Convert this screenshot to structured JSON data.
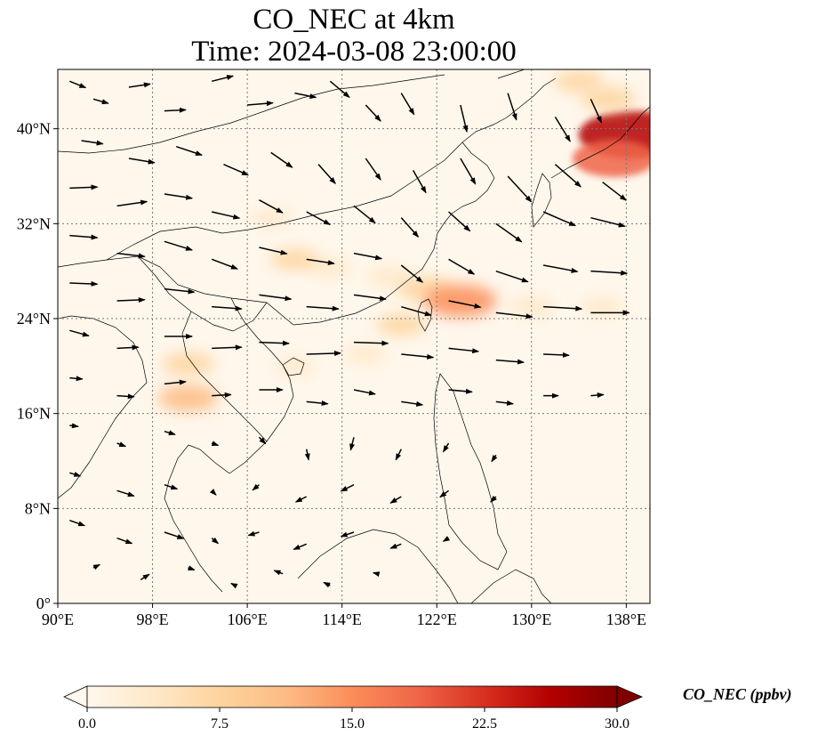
{
  "title_line1": "CO_NEC at 4km",
  "title_line2": "Time: 2024-03-08 23:00:00",
  "map": {
    "lon_range": [
      90,
      140
    ],
    "lat_range": [
      0,
      45
    ],
    "lon_ticks": [
      "90°E",
      "98°E",
      "106°E",
      "114°E",
      "122°E",
      "130°E",
      "138°E"
    ],
    "lon_tick_values": [
      90,
      98,
      106,
      114,
      122,
      130,
      138
    ],
    "lat_ticks": [
      "0°",
      "8°N",
      "16°N",
      "24°N",
      "32°N",
      "40°N"
    ],
    "lat_tick_values": [
      0,
      8,
      16,
      24,
      32,
      40
    ],
    "gridlines": true,
    "overlay": "wind vectors"
  },
  "colorbar": {
    "label": "CO_NEC (ppbv)",
    "ticks": [
      "0.0",
      "7.5",
      "15.0",
      "22.5",
      "30.0"
    ],
    "tick_values": [
      0,
      7.5,
      15,
      22.5,
      30
    ],
    "range": [
      0,
      30
    ],
    "colormap": "OrRd",
    "colors": [
      "#fff7ec",
      "#fee8c8",
      "#fdd49e",
      "#fdbb84",
      "#fc8d59",
      "#ef6548",
      "#d7301f",
      "#b30000",
      "#7f0000"
    ],
    "extend": "both"
  },
  "plumes": [
    {
      "lon": 113,
      "lat": 28.3,
      "value": 4
    },
    {
      "lon": 110,
      "lat": 29,
      "value": 6
    },
    {
      "lon": 118,
      "lat": 27.5,
      "value": 5
    },
    {
      "lon": 121,
      "lat": 26.5,
      "value": 8
    },
    {
      "lon": 124,
      "lat": 25.5,
      "value": 14
    },
    {
      "lon": 130,
      "lat": 25,
      "value": 5
    },
    {
      "lon": 136,
      "lat": 25,
      "value": 4
    },
    {
      "lon": 108,
      "lat": 32.5,
      "value": 3
    },
    {
      "lon": 119,
      "lat": 23.5,
      "value": 6
    },
    {
      "lon": 116,
      "lat": 21,
      "value": 4
    },
    {
      "lon": 110,
      "lat": 20,
      "value": 3
    },
    {
      "lon": 101,
      "lat": 17.3,
      "value": 10
    },
    {
      "lon": 101,
      "lat": 20.2,
      "value": 7
    },
    {
      "lon": 138.5,
      "lat": 39.5,
      "value": 26
    },
    {
      "lon": 137,
      "lat": 37.5,
      "value": 18
    },
    {
      "lon": 136.5,
      "lat": 42.5,
      "value": 8
    },
    {
      "lon": 134,
      "lat": 44,
      "value": 6
    }
  ],
  "wind_vectors": [
    {
      "lon": 91,
      "lat": 44,
      "u": 1.5,
      "v": -0.6
    },
    {
      "lon": 93,
      "lat": 42.5,
      "u": 1.4,
      "v": -0.4
    },
    {
      "lon": 96,
      "lat": 43.5,
      "u": 2.0,
      "v": 0.3
    },
    {
      "lon": 99,
      "lat": 41.5,
      "u": 2.0,
      "v": 0.1
    },
    {
      "lon": 103,
      "lat": 44,
      "u": 2.0,
      "v": 0.5
    },
    {
      "lon": 106,
      "lat": 42,
      "u": 2.4,
      "v": 0.2
    },
    {
      "lon": 110,
      "lat": 43,
      "u": 2.0,
      "v": -0.4
    },
    {
      "lon": 113,
      "lat": 44,
      "u": 1.8,
      "v": -1.5
    },
    {
      "lon": 116,
      "lat": 42,
      "u": 1.4,
      "v": -1.5
    },
    {
      "lon": 119,
      "lat": 43,
      "u": 1.2,
      "v": -2.0
    },
    {
      "lon": 124,
      "lat": 42,
      "u": 0.6,
      "v": -2.5
    },
    {
      "lon": 128,
      "lat": 43,
      "u": 0.8,
      "v": -2.5
    },
    {
      "lon": 132,
      "lat": 41,
      "u": 1.4,
      "v": -2.3
    },
    {
      "lon": 135,
      "lat": 42.5,
      "u": 1.0,
      "v": -2.2
    },
    {
      "lon": 92,
      "lat": 39,
      "u": 2.0,
      "v": -0.3
    },
    {
      "lon": 96,
      "lat": 37.5,
      "u": 2.4,
      "v": -0.4
    },
    {
      "lon": 100,
      "lat": 38.5,
      "u": 2.4,
      "v": -0.8
    },
    {
      "lon": 104,
      "lat": 37,
      "u": 2.3,
      "v": -1.0
    },
    {
      "lon": 108,
      "lat": 38,
      "u": 2.0,
      "v": -1.4
    },
    {
      "lon": 112,
      "lat": 37,
      "u": 1.6,
      "v": -1.8
    },
    {
      "lon": 116,
      "lat": 37.5,
      "u": 1.4,
      "v": -2.0
    },
    {
      "lon": 120,
      "lat": 36.5,
      "u": 1.2,
      "v": -2.1
    },
    {
      "lon": 124,
      "lat": 37.5,
      "u": 1.4,
      "v": -2.4
    },
    {
      "lon": 128,
      "lat": 36,
      "u": 2.2,
      "v": -2.4
    },
    {
      "lon": 132,
      "lat": 37,
      "u": 2.4,
      "v": -2.1
    },
    {
      "lon": 136,
      "lat": 35.5,
      "u": 2.2,
      "v": -1.7
    },
    {
      "lon": 91,
      "lat": 35,
      "u": 2.6,
      "v": 0.1
    },
    {
      "lon": 95,
      "lat": 33.5,
      "u": 2.8,
      "v": 0.4
    },
    {
      "lon": 99,
      "lat": 34.5,
      "u": 2.6,
      "v": -0.4
    },
    {
      "lon": 103,
      "lat": 33,
      "u": 2.6,
      "v": -0.6
    },
    {
      "lon": 107,
      "lat": 34,
      "u": 2.2,
      "v": -1.2
    },
    {
      "lon": 111,
      "lat": 33,
      "u": 2.2,
      "v": -1.2
    },
    {
      "lon": 115,
      "lat": 33.5,
      "u": 2.0,
      "v": -1.6
    },
    {
      "lon": 119,
      "lat": 32.5,
      "u": 1.6,
      "v": -1.8
    },
    {
      "lon": 123,
      "lat": 33,
      "u": 2.0,
      "v": -1.8
    },
    {
      "lon": 127,
      "lat": 32,
      "u": 2.4,
      "v": -1.7
    },
    {
      "lon": 131,
      "lat": 33,
      "u": 3.0,
      "v": -1.3
    },
    {
      "lon": 135,
      "lat": 32.5,
      "u": 3.2,
      "v": -0.8
    },
    {
      "lon": 91,
      "lat": 31,
      "u": 2.6,
      "v": -0.2
    },
    {
      "lon": 95,
      "lat": 29.5,
      "u": 2.6,
      "v": -0.3
    },
    {
      "lon": 99,
      "lat": 30.5,
      "u": 2.6,
      "v": -0.8
    },
    {
      "lon": 103,
      "lat": 29,
      "u": 2.4,
      "v": -0.9
    },
    {
      "lon": 107,
      "lat": 30,
      "u": 2.6,
      "v": -0.6
    },
    {
      "lon": 111,
      "lat": 29,
      "u": 2.6,
      "v": -0.4
    },
    {
      "lon": 115,
      "lat": 29.5,
      "u": 2.6,
      "v": -0.5
    },
    {
      "lon": 119,
      "lat": 28.5,
      "u": 2.0,
      "v": -1.6
    },
    {
      "lon": 123,
      "lat": 29,
      "u": 2.4,
      "v": -1.4
    },
    {
      "lon": 127,
      "lat": 28,
      "u": 3.0,
      "v": -1.0
    },
    {
      "lon": 131,
      "lat": 28.5,
      "u": 3.2,
      "v": -0.6
    },
    {
      "lon": 135,
      "lat": 28,
      "u": 3.4,
      "v": -0.2
    },
    {
      "lon": 91,
      "lat": 27,
      "u": 2.6,
      "v": -0.1
    },
    {
      "lon": 95,
      "lat": 25.5,
      "u": 2.6,
      "v": 0.1
    },
    {
      "lon": 99,
      "lat": 26.5,
      "u": 2.8,
      "v": -0.3
    },
    {
      "lon": 103,
      "lat": 25,
      "u": 2.8,
      "v": -0.2
    },
    {
      "lon": 107,
      "lat": 26,
      "u": 3.0,
      "v": -0.4
    },
    {
      "lon": 111,
      "lat": 25,
      "u": 3.0,
      "v": -0.2
    },
    {
      "lon": 115,
      "lat": 26,
      "u": 3.0,
      "v": -0.4
    },
    {
      "lon": 119,
      "lat": 25,
      "u": 2.8,
      "v": -0.8
    },
    {
      "lon": 123,
      "lat": 25.5,
      "u": 3.0,
      "v": -0.6
    },
    {
      "lon": 127,
      "lat": 24.5,
      "u": 3.4,
      "v": -0.4
    },
    {
      "lon": 131,
      "lat": 25,
      "u": 3.6,
      "v": -0.2
    },
    {
      "lon": 135,
      "lat": 24.5,
      "u": 3.6,
      "v": 0.0
    },
    {
      "lon": 91,
      "lat": 23,
      "u": 1.8,
      "v": -0.5
    },
    {
      "lon": 95,
      "lat": 21.5,
      "u": 2.0,
      "v": 0.1
    },
    {
      "lon": 99,
      "lat": 22.5,
      "u": 2.6,
      "v": 0.0
    },
    {
      "lon": 103,
      "lat": 21.5,
      "u": 2.8,
      "v": 0.1
    },
    {
      "lon": 107,
      "lat": 22,
      "u": 2.8,
      "v": -0.1
    },
    {
      "lon": 111,
      "lat": 21,
      "u": 3.2,
      "v": 0.1
    },
    {
      "lon": 115,
      "lat": 22,
      "u": 3.2,
      "v": -0.1
    },
    {
      "lon": 119,
      "lat": 21,
      "u": 3.0,
      "v": -0.3
    },
    {
      "lon": 123,
      "lat": 21.5,
      "u": 2.8,
      "v": -0.3
    },
    {
      "lon": 127,
      "lat": 20.5,
      "u": 2.6,
      "v": -0.2
    },
    {
      "lon": 131,
      "lat": 21,
      "u": 2.4,
      "v": -0.1
    },
    {
      "lon": 91,
      "lat": 19,
      "u": 1.2,
      "v": -0.1
    },
    {
      "lon": 95,
      "lat": 17.5,
      "u": 1.6,
      "v": -0.1
    },
    {
      "lon": 99,
      "lat": 18.5,
      "u": 2.0,
      "v": 0.2
    },
    {
      "lon": 103,
      "lat": 17.5,
      "u": 1.8,
      "v": 0.1
    },
    {
      "lon": 107,
      "lat": 18,
      "u": 2.2,
      "v": 0.0
    },
    {
      "lon": 111,
      "lat": 17,
      "u": 2.0,
      "v": -0.2
    },
    {
      "lon": 115,
      "lat": 18,
      "u": 2.0,
      "v": -0.4
    },
    {
      "lon": 119,
      "lat": 17,
      "u": 2.0,
      "v": -0.3
    },
    {
      "lon": 123,
      "lat": 18,
      "u": 2.2,
      "v": -0.2
    },
    {
      "lon": 127,
      "lat": 17,
      "u": 1.6,
      "v": -0.2
    },
    {
      "lon": 131,
      "lat": 17.5,
      "u": 1.4,
      "v": 0.0
    },
    {
      "lon": 135,
      "lat": 17.5,
      "u": 1.2,
      "v": 0.1
    },
    {
      "lon": 91,
      "lat": 15,
      "u": 0.8,
      "v": -0.1
    },
    {
      "lon": 95,
      "lat": 13.5,
      "u": 0.8,
      "v": -0.3
    },
    {
      "lon": 99,
      "lat": 14.5,
      "u": 1.0,
      "v": -0.3
    },
    {
      "lon": 103,
      "lat": 13.5,
      "u": 0.6,
      "v": -0.2
    },
    {
      "lon": 107,
      "lat": 14,
      "u": 0.6,
      "v": -0.6
    },
    {
      "lon": 111,
      "lat": 13,
      "u": 0.2,
      "v": -1.0
    },
    {
      "lon": 115,
      "lat": 14,
      "u": -0.3,
      "v": -1.2
    },
    {
      "lon": 119,
      "lat": 13,
      "u": -0.5,
      "v": -1.0
    },
    {
      "lon": 123,
      "lat": 13.5,
      "u": -0.5,
      "v": -0.8
    },
    {
      "lon": 127,
      "lat": 12.5,
      "u": -0.4,
      "v": -0.6
    },
    {
      "lon": 91,
      "lat": 11,
      "u": 1.0,
      "v": -0.3
    },
    {
      "lon": 95,
      "lat": 9.5,
      "u": 1.6,
      "v": -0.5
    },
    {
      "lon": 99,
      "lat": 10,
      "u": 1.2,
      "v": -0.4
    },
    {
      "lon": 103,
      "lat": 9.5,
      "u": 0.4,
      "v": -0.4
    },
    {
      "lon": 107,
      "lat": 10,
      "u": -0.6,
      "v": -0.5
    },
    {
      "lon": 111,
      "lat": 9,
      "u": -1.0,
      "v": -0.5
    },
    {
      "lon": 115,
      "lat": 10,
      "u": -1.2,
      "v": -0.6
    },
    {
      "lon": 119,
      "lat": 9,
      "u": -1.0,
      "v": -0.6
    },
    {
      "lon": 123,
      "lat": 9.5,
      "u": -0.8,
      "v": -0.6
    },
    {
      "lon": 127,
      "lat": 9,
      "u": -0.5,
      "v": -0.5
    },
    {
      "lon": 91,
      "lat": 7,
      "u": 1.4,
      "v": -0.5
    },
    {
      "lon": 95,
      "lat": 5.5,
      "u": 1.4,
      "v": -0.5
    },
    {
      "lon": 99,
      "lat": 6,
      "u": 1.8,
      "v": -0.6
    },
    {
      "lon": 103,
      "lat": 5.5,
      "u": 0.6,
      "v": -0.5
    },
    {
      "lon": 107,
      "lat": 6,
      "u": -1.0,
      "v": -0.3
    },
    {
      "lon": 111,
      "lat": 5,
      "u": -1.2,
      "v": -0.5
    },
    {
      "lon": 115,
      "lat": 6,
      "u": -1.2,
      "v": -0.4
    },
    {
      "lon": 119,
      "lat": 5,
      "u": -1.0,
      "v": -0.4
    },
    {
      "lon": 123,
      "lat": 5.5,
      "u": -0.5,
      "v": -0.3
    },
    {
      "lon": 93,
      "lat": 3,
      "u": 0.6,
      "v": 0.3
    },
    {
      "lon": 97,
      "lat": 2,
      "u": 0.8,
      "v": 0.5
    },
    {
      "lon": 101,
      "lat": 3,
      "u": 0.6,
      "v": -0.2
    },
    {
      "lon": 105,
      "lat": 1.5,
      "u": -0.4,
      "v": 0.2
    },
    {
      "lon": 109,
      "lat": 2.5,
      "u": -0.8,
      "v": 0.3
    },
    {
      "lon": 113,
      "lat": 1.5,
      "u": -0.6,
      "v": 0.3
    },
    {
      "lon": 117,
      "lat": 2.5,
      "u": -0.4,
      "v": 0.1
    }
  ]
}
